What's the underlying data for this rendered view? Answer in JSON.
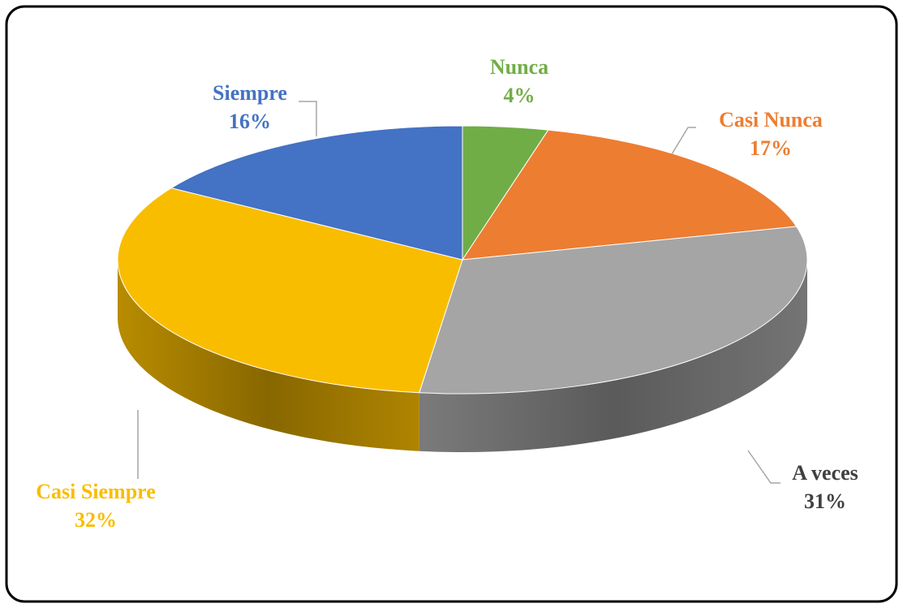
{
  "chart_data": {
    "type": "pie",
    "categories": [
      "Nunca",
      "Casi Nunca",
      "A veces",
      "Casi Siempre",
      "Siempre"
    ],
    "values": [
      4,
      17,
      31,
      32,
      16
    ],
    "value_labels": [
      "4%",
      "17%",
      "31%",
      "32%",
      "16%"
    ],
    "colors": [
      "#70ad47",
      "#ed7d31",
      "#a5a5a5",
      "#f9bd00",
      "#4472c4"
    ],
    "three_d": true
  }
}
